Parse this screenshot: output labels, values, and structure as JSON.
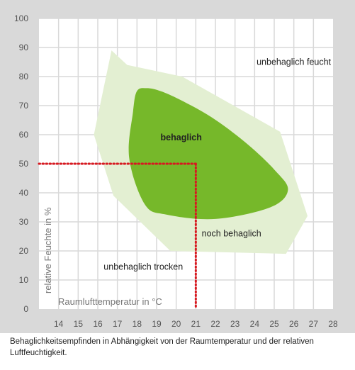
{
  "chart_data": {
    "type": "area",
    "xlim": [
      13,
      28
    ],
    "ylim": [
      0,
      100
    ],
    "xticks": [
      "14",
      "15",
      "16",
      "17",
      "18",
      "19",
      "20",
      "21",
      "22",
      "23",
      "24",
      "25",
      "26",
      "27",
      "28"
    ],
    "yticks": [
      "0",
      "10",
      "20",
      "30",
      "40",
      "50",
      "60",
      "70",
      "80",
      "90",
      "100"
    ],
    "xlabel": "Raumlufttemperatur in °C",
    "ylabel": "relative Feuchte in %",
    "grid": true,
    "regions": [
      {
        "name": "noch behaglich",
        "color": "#e3efd2",
        "points": [
          [
            16.7,
            89
          ],
          [
            17.5,
            84
          ],
          [
            20.3,
            80
          ],
          [
            25.3,
            61
          ],
          [
            26.7,
            32
          ],
          [
            25.6,
            19
          ],
          [
            19.7,
            20
          ],
          [
            16.8,
            39
          ],
          [
            15.8,
            60
          ]
        ]
      },
      {
        "name": "behaglich",
        "color": "#76b82a",
        "points": [
          [
            18.5,
            76
          ],
          [
            19.2,
            75
          ],
          [
            20.2,
            72
          ],
          [
            21.8,
            66
          ],
          [
            23.5,
            57.5
          ],
          [
            25.0,
            48
          ],
          [
            25.7,
            41
          ],
          [
            24.8,
            35
          ],
          [
            22.0,
            31
          ],
          [
            19.5,
            32.5
          ],
          [
            18.4,
            36
          ],
          [
            17.6,
            52
          ],
          [
            17.8,
            68
          ],
          [
            18.0,
            75
          ]
        ]
      }
    ],
    "zone_labels": [
      {
        "text": "unbehaglich feucht",
        "x": 24.1,
        "y": 84,
        "weight": "normal"
      },
      {
        "text": "behaglich",
        "x": 19.2,
        "y": 58,
        "weight": "bold",
        "color": "#ffffff"
      },
      {
        "text": "noch behaglich",
        "x": 21.3,
        "y": 25,
        "weight": "normal"
      },
      {
        "text": "unbehaglich trocken",
        "x": 16.3,
        "y": 13.5,
        "weight": "normal"
      }
    ],
    "reference": {
      "x": 21,
      "y": 50,
      "color": "#d71920"
    }
  },
  "caption": "Behaglichkeitsempfinden in Abhängigkeit von der Raumtemperatur und der relativen Luftfeuchtigkeit."
}
